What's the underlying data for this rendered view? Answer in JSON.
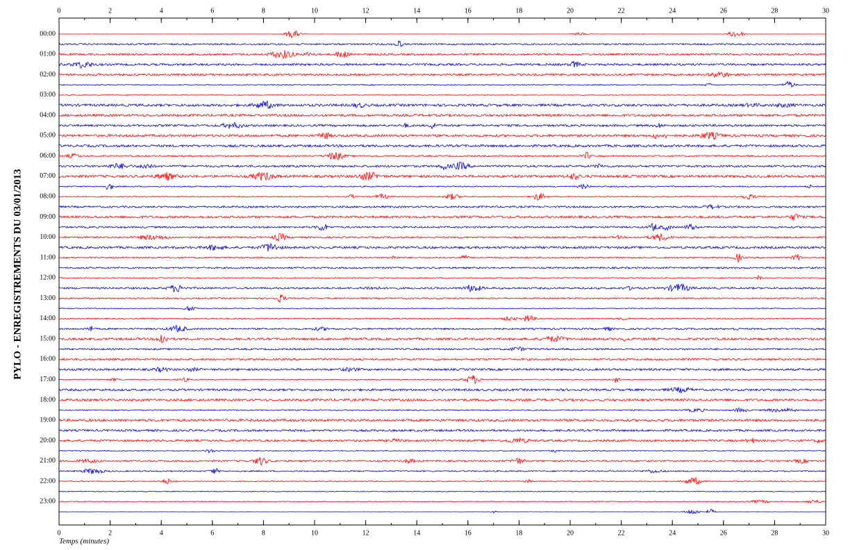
{
  "chart_data": {
    "type": "helicorder",
    "title": "PYLO - ENREGISTREMENTS DU 03/01/2013",
    "xlabel": "Temps (minutes)",
    "xlim": [
      0,
      30
    ],
    "xticks": [
      0,
      2,
      4,
      6,
      8,
      10,
      12,
      14,
      16,
      18,
      20,
      22,
      24,
      26,
      28,
      30
    ],
    "row_labels": [
      "00:00",
      "01:00",
      "02:00",
      "03:00",
      "04:00",
      "05:00",
      "06:00",
      "07:00",
      "08:00",
      "09:00",
      "10:00",
      "11:00",
      "12:00",
      "13:00",
      "14:00",
      "15:00",
      "16:00",
      "17:00",
      "18:00",
      "19:00",
      "20:00",
      "21:00",
      "22:00",
      "23:00"
    ],
    "trace_colors": [
      "#ff0000",
      "#0000cc"
    ]
  }
}
